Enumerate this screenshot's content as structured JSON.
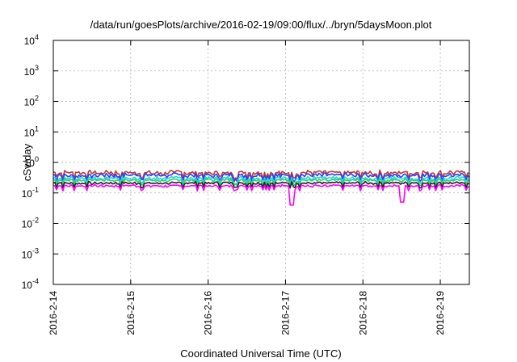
{
  "chart_data": {
    "type": "line",
    "title": "/data/run/goesPlots/archive/2016-02-19/09:00/flux/../bryn/5daysMoon.plot",
    "xlabel": "Coordinated Universal Time (UTC)",
    "ylabel": "cSv/day",
    "y_scale": "log",
    "ylim": [
      0.0001,
      10000
    ],
    "y_ticks": [
      {
        "base": "10",
        "exp": "-4",
        "value": 0.0001
      },
      {
        "base": "10",
        "exp": "-3",
        "value": 0.001
      },
      {
        "base": "10",
        "exp": "-2",
        "value": 0.01
      },
      {
        "base": "10",
        "exp": "-1",
        "value": 0.1
      },
      {
        "base": "10",
        "exp": "0",
        "value": 1
      },
      {
        "base": "10",
        "exp": "1",
        "value": 10
      },
      {
        "base": "10",
        "exp": "2",
        "value": 100
      },
      {
        "base": "10",
        "exp": "3",
        "value": 1000
      },
      {
        "base": "10",
        "exp": "4",
        "value": 10000
      }
    ],
    "xlim": [
      "2016-02-14 00:00",
      "2016-02-19 09:00"
    ],
    "x_ticks": [
      "2016-2-14",
      "2016-2-15",
      "2016-2-16",
      "2016-2-17",
      "2016-2-18",
      "2016-2-19"
    ],
    "grid": true,
    "series": [
      {
        "color": "#c0392b",
        "level": 0.46,
        "spread": 0.18
      },
      {
        "color": "#2b3cff",
        "level": 0.38,
        "spread": 0.18
      },
      {
        "color": "#1fd6e0",
        "level": 0.3,
        "spread": 0.14
      },
      {
        "color": "#2ecc71",
        "level": 0.26,
        "spread": 0.12
      },
      {
        "color": "#222222",
        "level": 0.21,
        "spread": 0.1
      },
      {
        "color": "#ff00ff",
        "level": 0.17,
        "spread": 0.1
      }
    ],
    "dips": [
      {
        "at": "2016-02-17 02:00",
        "series_color": "#ff00ff",
        "min": 0.04
      },
      {
        "at": "2016-02-18 12:00",
        "series_color": "#ff00ff",
        "min": 0.05
      }
    ]
  }
}
